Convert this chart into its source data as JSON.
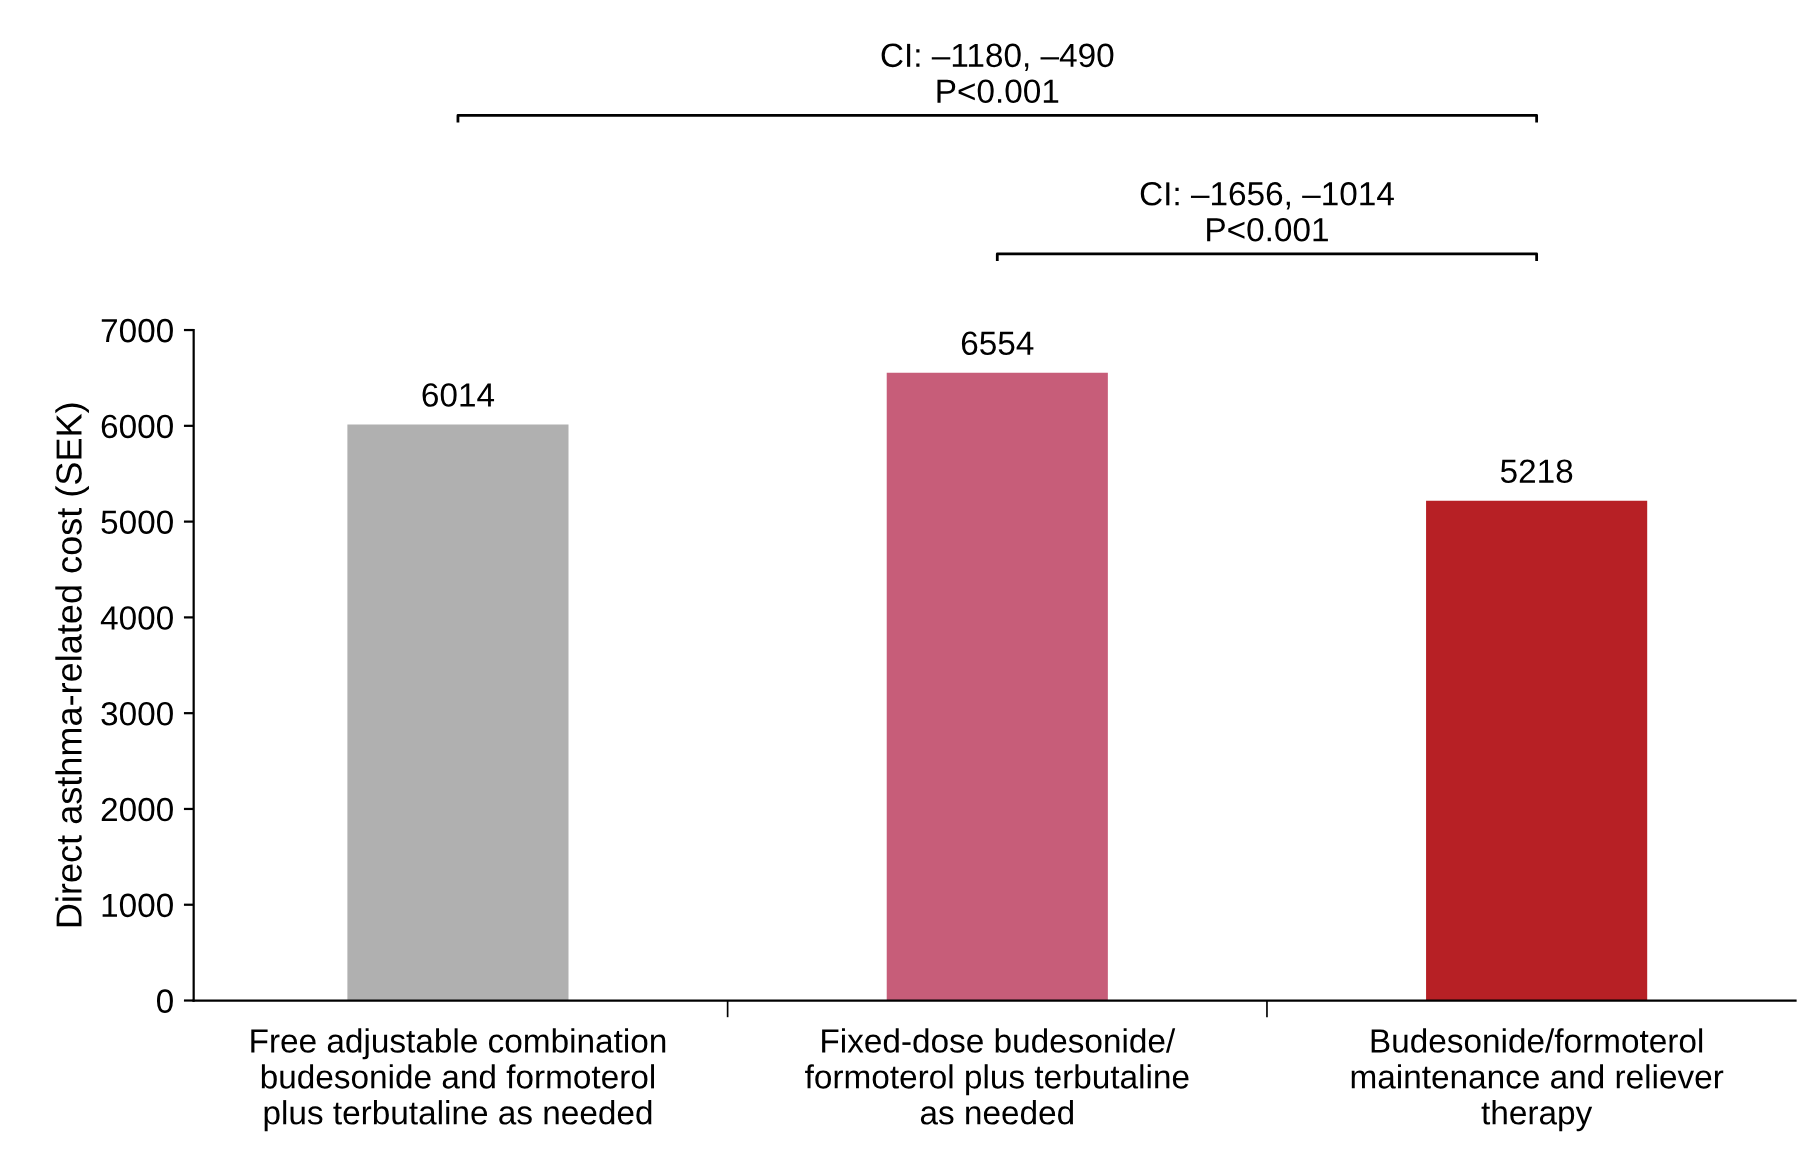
{
  "chart_data": {
    "type": "bar",
    "ylabel": "Direct asthma-related cost (SEK)",
    "categories": [
      "Free adjustable combination\nbudesonide and formoterol\nplus terbutaline as needed",
      "Fixed-dose budesonide/\nformoterol plus terbutaline\nas needed",
      "Budesonide/formoterol\nmaintenance and reliever\ntherapy"
    ],
    "values": [
      6014,
      6554,
      5218
    ],
    "colors": [
      "#b0b0b0",
      "#c75d79",
      "#b72025"
    ],
    "data_labels": true,
    "ylim": [
      0,
      7000
    ],
    "yticks": [
      0,
      1000,
      2000,
      3000,
      4000,
      5000,
      6000,
      7000
    ],
    "grid": false,
    "legend": false,
    "annotations": [
      "CI: –1180, –490\nP<0.001",
      "CI: –1656, –1014\nP<0.001"
    ]
  }
}
